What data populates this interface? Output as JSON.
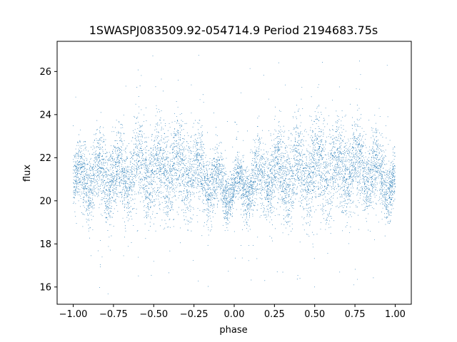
{
  "chart_data": {
    "type": "scatter",
    "title": "1SWASPJ083509.92-054714.9 Period 2194683.75s",
    "xlabel": "phase",
    "ylabel": "flux",
    "xlim": [
      -1.1,
      1.1
    ],
    "ylim": [
      15.2,
      27.4
    ],
    "xticks": [
      -1.0,
      -0.75,
      -0.5,
      -0.25,
      0.0,
      0.25,
      0.5,
      0.75,
      1.0
    ],
    "xtick_labels": [
      "−1.00",
      "−0.75",
      "−0.50",
      "−0.25",
      "0.00",
      "0.25",
      "0.50",
      "0.75",
      "1.00"
    ],
    "yticks": [
      16,
      18,
      20,
      22,
      24,
      26
    ],
    "ytick_labels": [
      "16",
      "18",
      "20",
      "22",
      "24",
      "26"
    ],
    "grid": false,
    "point_color": "#1f77b4",
    "x_range": [
      -1.0,
      1.0
    ],
    "typical_flux_band": [
      19.5,
      23.0
    ],
    "flux_extremes": [
      15.6,
      26.9
    ],
    "envelope": {
      "phase": [
        -1.0,
        -0.95,
        -0.85,
        -0.75,
        -0.65,
        -0.55,
        -0.45,
        -0.35,
        -0.25,
        -0.15,
        -0.05,
        0.0,
        0.05,
        0.15,
        0.25,
        0.35,
        0.45,
        0.55,
        0.65,
        0.75,
        0.85,
        0.95,
        1.0
      ],
      "median_flux": [
        20.8,
        21.0,
        21.2,
        21.0,
        21.3,
        21.5,
        21.4,
        21.6,
        21.3,
        21.0,
        20.6,
        20.5,
        20.6,
        21.0,
        21.2,
        21.3,
        21.4,
        21.6,
        21.6,
        21.5,
        21.3,
        21.0,
        20.8
      ],
      "spread": [
        1.0,
        1.3,
        1.6,
        1.6,
        1.7,
        1.8,
        1.9,
        1.9,
        1.7,
        1.5,
        1.1,
        1.0,
        1.1,
        1.5,
        1.7,
        1.9,
        1.9,
        1.9,
        1.8,
        1.7,
        1.6,
        1.3,
        1.0
      ]
    }
  }
}
